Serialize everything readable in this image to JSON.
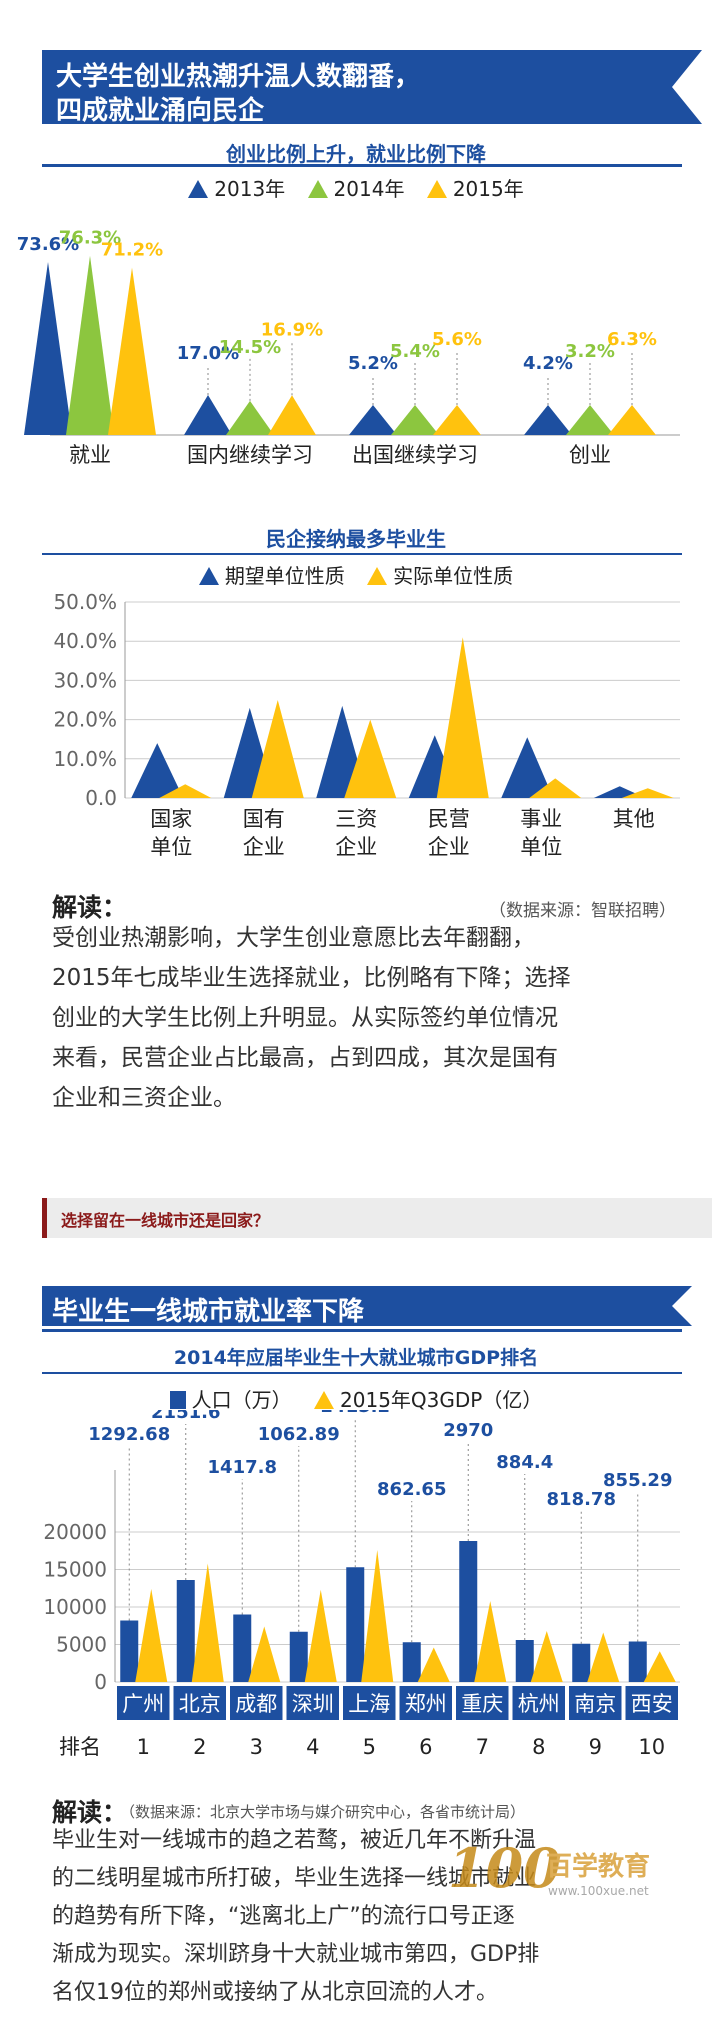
{
  "section1": {
    "banner_line1": "大学生创业热潮升温人数翻番，",
    "banner_line2": "四成就业涌向民企"
  },
  "section2": {
    "tag_text": "选择留在一线城市还是回家？",
    "banner": "毕业生一线城市就业率下降"
  },
  "colors": {
    "blue": "#1d4fa0",
    "green": "#8cc63f",
    "yellow": "#ffc20e"
  },
  "chart_data": [
    {
      "type": "area",
      "title": "创业比例上升，就业比例下降",
      "series_names": [
        "2013年",
        "2014年",
        "2015年"
      ],
      "categories": [
        "就业",
        "国内继续学习",
        "出国继续学习",
        "创业"
      ],
      "series": [
        {
          "name": "2013年",
          "values": [
            73.6,
            17.0,
            5.2,
            4.2
          ],
          "labels": [
            "73.6%",
            "17.0%",
            "5.2%",
            "4.2%"
          ]
        },
        {
          "name": "2014年",
          "values": [
            76.3,
            14.5,
            5.4,
            3.2
          ],
          "labels": [
            "76.3%",
            "14.5%",
            "5.4%",
            "3.2%"
          ]
        },
        {
          "name": "2015年",
          "values": [
            71.2,
            16.9,
            5.6,
            6.3
          ],
          "labels": [
            "71.2%",
            "16.9%",
            "5.6%",
            "6.3%"
          ]
        }
      ]
    },
    {
      "type": "area",
      "title": "民企接纳最多毕业生",
      "series_names": [
        "期望单位性质",
        "实际单位性质"
      ],
      "categories": [
        "国家\n单位",
        "国有\n企业",
        "三资\n企业",
        "民营\n企业",
        "事业\n单位",
        "其他"
      ],
      "yticks": [
        "50.0%",
        "40.0%",
        "30.0%",
        "20.0%",
        "10.0%",
        "0.0"
      ],
      "ylim": [
        0,
        50
      ],
      "series": [
        {
          "name": "期望单位性质",
          "values": [
            14,
            23,
            23.5,
            16,
            15.5,
            3
          ]
        },
        {
          "name": "实际单位性质",
          "values": [
            3.5,
            25,
            20,
            41,
            5,
            2.5
          ]
        }
      ]
    },
    {
      "type": "bar",
      "title": "2014年应届毕业生十大就业城市GDP排名",
      "series_names": [
        "人口（万）",
        "2015年Q3GDP（亿）"
      ],
      "categories": [
        "广州",
        "北京",
        "成都",
        "深圳",
        "上海",
        "郑州",
        "重庆",
        "杭州",
        "南京",
        "西安"
      ],
      "ranks": [
        "1",
        "2",
        "3",
        "4",
        "5",
        "6",
        "7",
        "8",
        "9",
        "10"
      ],
      "rank_label": "排名",
      "yticks": [
        "20000",
        "15000",
        "10000",
        "5000",
        "0"
      ],
      "ylim": [
        0,
        20000
      ],
      "series": [
        {
          "name": "人口（万）",
          "values": [
            1292.68,
            2151.6,
            1417.8,
            1062.89,
            2415.2,
            862.65,
            2970,
            884.4,
            818.78,
            855.29
          ],
          "labels": [
            "1292.68",
            "2151.6",
            "1417.8",
            "1062.89",
            "2415.2",
            "862.65",
            "2970",
            "884.4",
            "818.78",
            "855.29"
          ],
          "bar_values": [
            8200,
            13600,
            9000,
            6700,
            15300,
            5300,
            18800,
            5600,
            5100,
            5400
          ]
        },
        {
          "name": "2015年Q3GDP（亿）",
          "values": [
            12400,
            15800,
            7400,
            12300,
            17600,
            4600,
            10800,
            6800,
            6600,
            4100
          ]
        }
      ]
    }
  ],
  "reading1": {
    "head": "解读：",
    "source": "（数据来源：智联招聘）",
    "lines": [
      "受创业热潮影响，大学生创业意愿比去年翻翻，",
      "2015年七成毕业生选择就业，比例略有下降；选择",
      "创业的大学生比例上升明显。从实际签约单位情况",
      "来看，民营企业占比最高，占到四成，其次是国有",
      "企业和三资企业。"
    ]
  },
  "reading2": {
    "head": "解读：",
    "source": "（数据来源：北京大学市场与媒介研究中心，各省市统计局）",
    "lines": [
      "毕业生对一线城市的趋之若鹜，被近几年不断升温",
      "的二线明星城市所打破，毕业生选择一线城市就业",
      "的趋势有所下降，“逃离北上广”的流行口号正逐",
      "渐成为现实。深圳跻身十大就业城市第四，GDP排",
      "名仅19位的郑州或接纳了从北京回流的人才。"
    ]
  },
  "watermark": {
    "number": "100",
    "name": "百学教育",
    "site": "www.100xue.net"
  }
}
